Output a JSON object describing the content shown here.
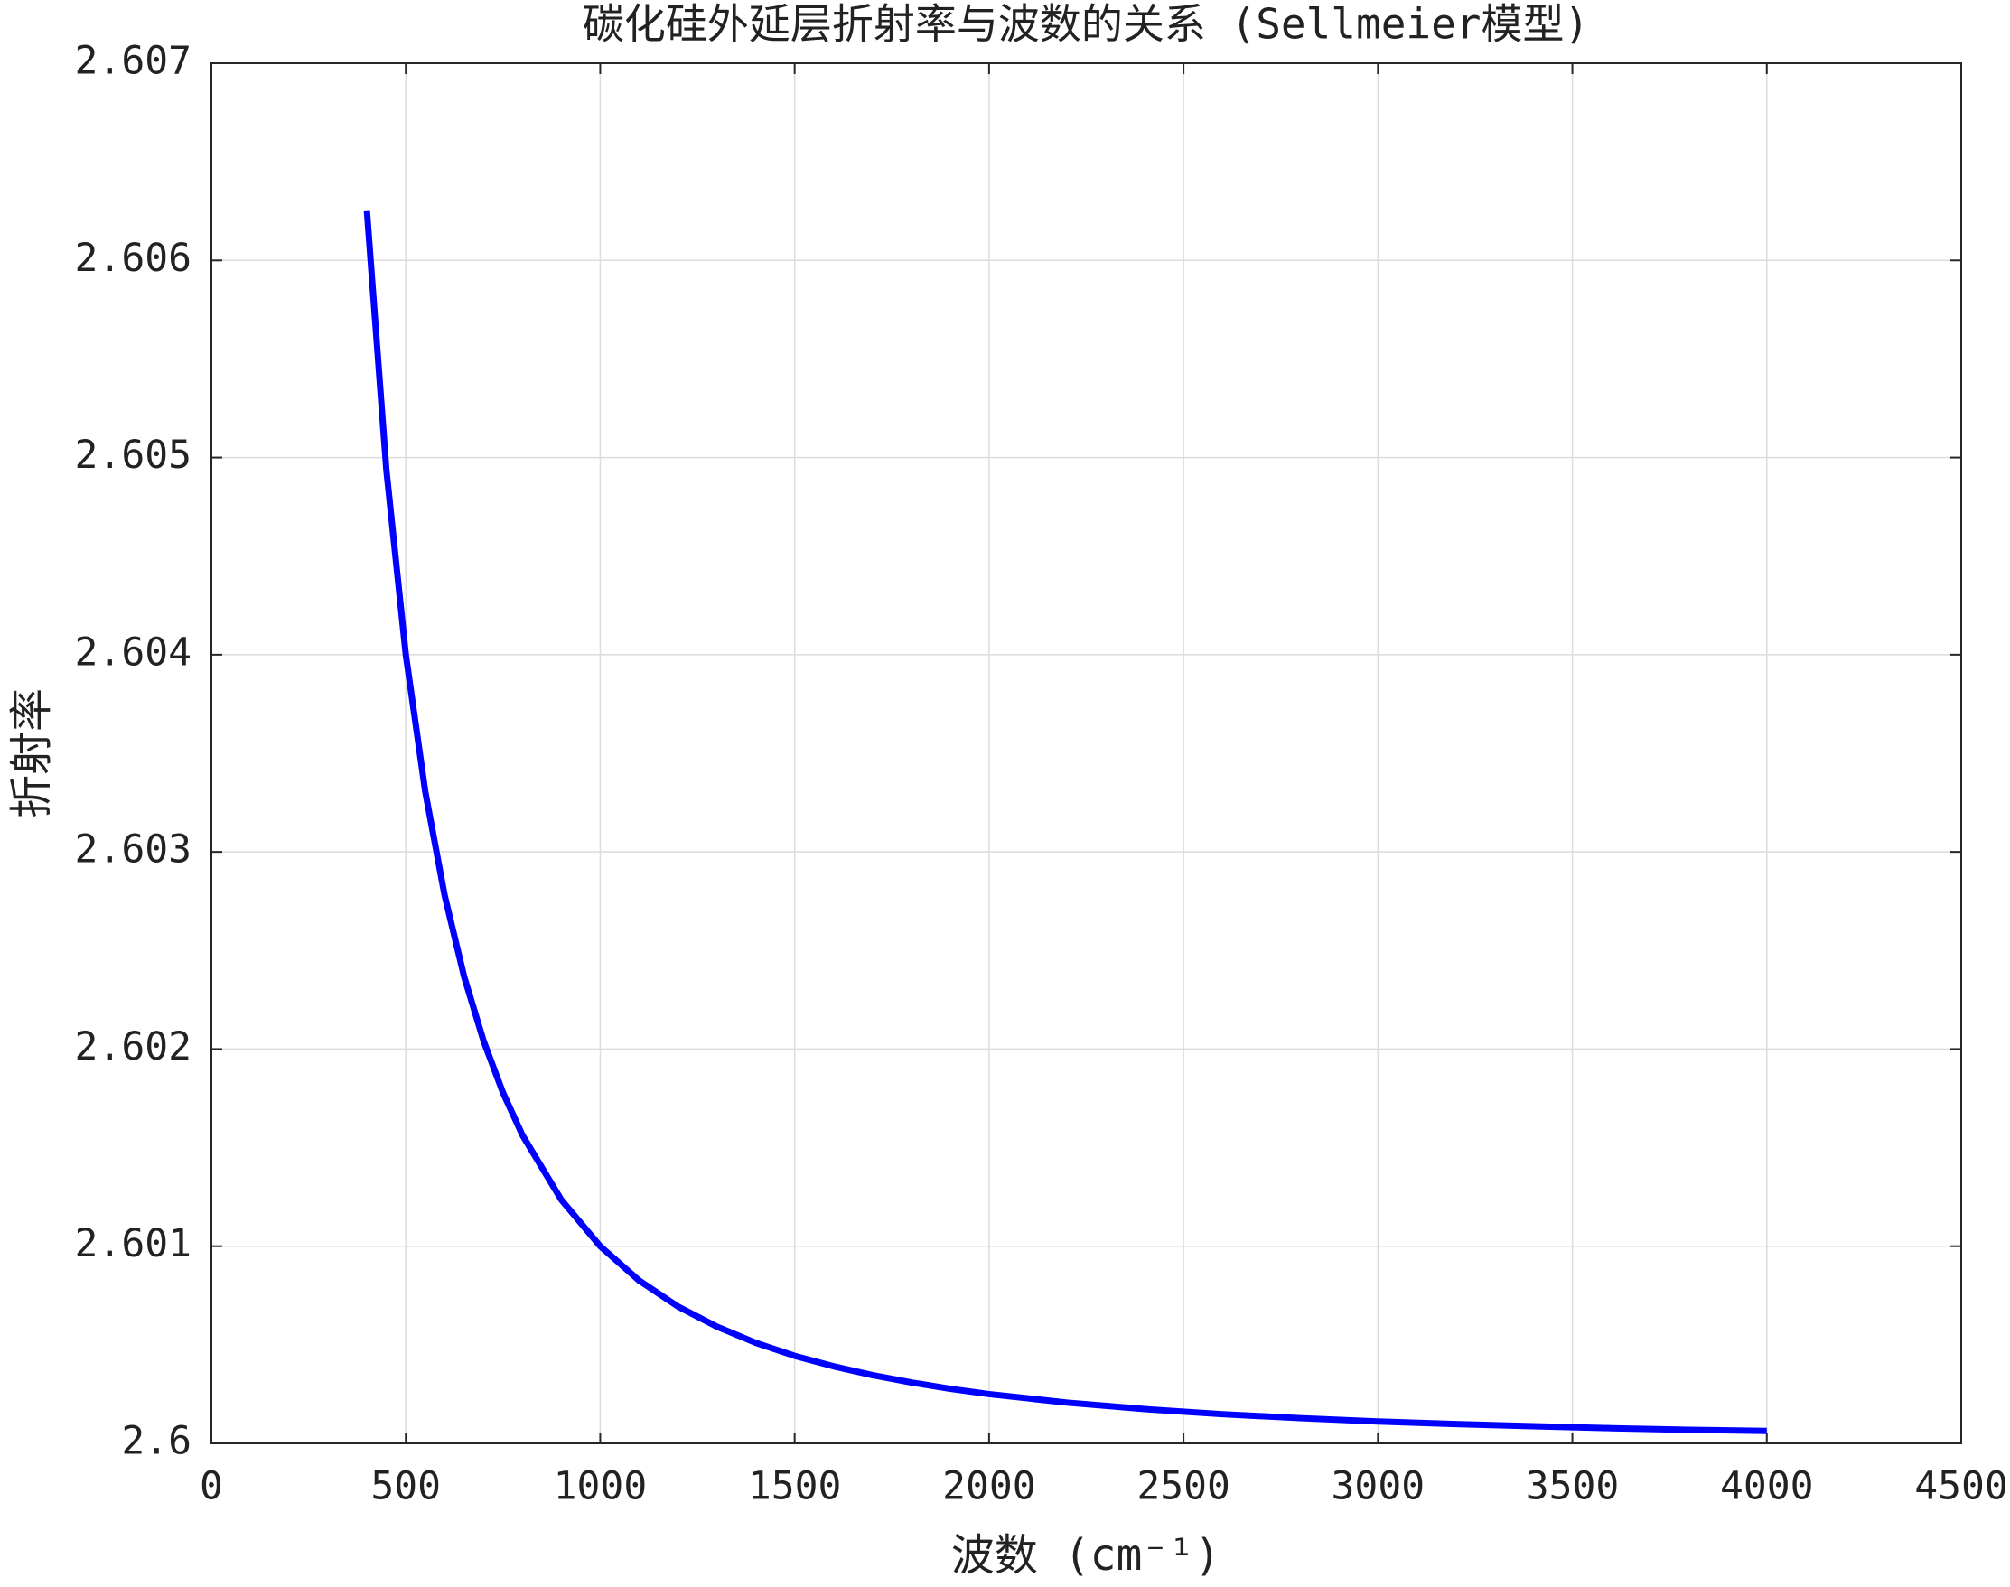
{
  "chart_data": {
    "type": "line",
    "title": "碳化硅外延层折射率与波数的关系 (Sellmeier模型)",
    "xlabel": "波数 (cm⁻¹)",
    "ylabel": "折射率",
    "x": [
      400,
      450,
      500,
      550,
      600,
      650,
      700,
      750,
      800,
      900,
      1000,
      1100,
      1200,
      1300,
      1400,
      1500,
      1600,
      1700,
      1800,
      1900,
      2000,
      2200,
      2400,
      2600,
      2800,
      3000,
      3200,
      3400,
      3600,
      3800,
      4000
    ],
    "series": [
      {
        "color": "#0000ff",
        "values": [
          2.60625,
          2.604938,
          2.604,
          2.603306,
          2.602778,
          2.602367,
          2.602041,
          2.601778,
          2.601563,
          2.601235,
          2.601,
          2.600826,
          2.600694,
          2.600592,
          2.60051,
          2.600444,
          2.600391,
          2.600346,
          2.600309,
          2.600277,
          2.60025,
          2.600207,
          2.600174,
          2.600148,
          2.600128,
          2.600111,
          2.600098,
          2.600087,
          2.600077,
          2.600069,
          2.600063
        ]
      }
    ],
    "xlim": [
      0,
      4500
    ],
    "xticks": [
      0,
      500,
      1000,
      1500,
      2000,
      2500,
      3000,
      3500,
      4000,
      4500
    ],
    "ylim": [
      2.6,
      2.607
    ],
    "yticks": [
      2.6,
      2.601,
      2.602,
      2.603,
      2.604,
      2.605,
      2.606,
      2.607
    ],
    "grid": true
  }
}
